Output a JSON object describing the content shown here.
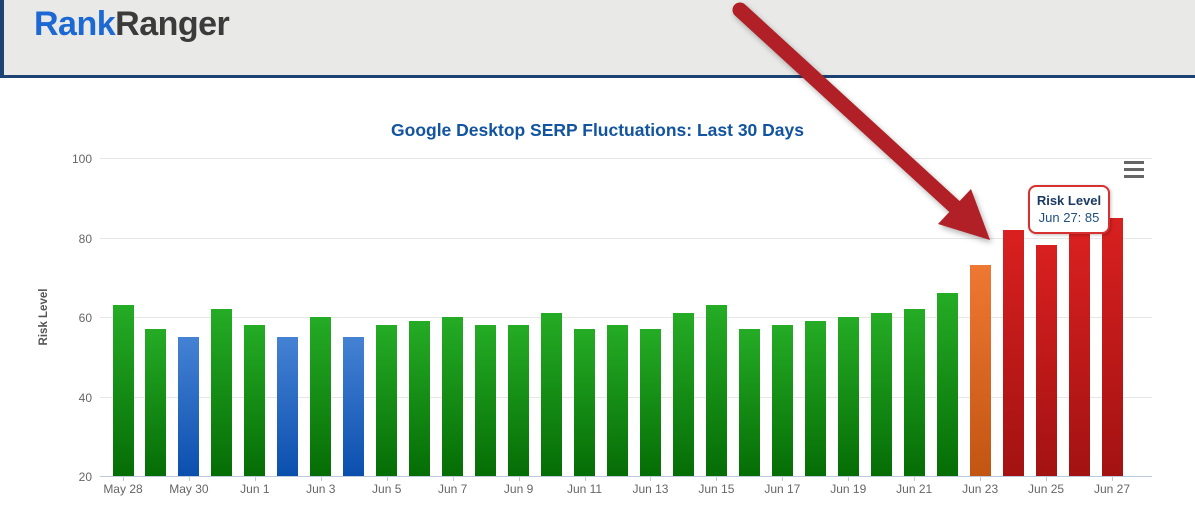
{
  "header": {
    "logo_part1": "Rank",
    "logo_part2": "Ranger"
  },
  "chart_data": {
    "type": "bar",
    "title": "Google Desktop SERP Fluctuations: Last 30 Days",
    "xlabel": "",
    "ylabel": "Risk Level",
    "ylim": [
      20,
      100
    ],
    "yticks": [
      20,
      40,
      60,
      80,
      100
    ],
    "grid": true,
    "legend": "none",
    "x_tick_label_every": 2,
    "categories": [
      "May 28",
      "May 29",
      "May 30",
      "May 31",
      "Jun 1",
      "Jun 2",
      "Jun 3",
      "Jun 4",
      "Jun 5",
      "Jun 6",
      "Jun 7",
      "Jun 8",
      "Jun 9",
      "Jun 10",
      "Jun 11",
      "Jun 12",
      "Jun 13",
      "Jun 14",
      "Jun 15",
      "Jun 16",
      "Jun 17",
      "Jun 18",
      "Jun 19",
      "Jun 20",
      "Jun 21",
      "Jun 22",
      "Jun 23",
      "Jun 24",
      "Jun 25",
      "Jun 26",
      "Jun 27"
    ],
    "values": [
      63,
      57,
      55,
      62,
      58,
      55,
      60,
      55,
      58,
      59,
      60,
      58,
      58,
      61,
      57,
      58,
      57,
      61,
      63,
      57,
      58,
      59,
      60,
      61,
      62,
      66,
      73,
      82,
      78,
      81,
      85
    ],
    "bar_colors": [
      "green",
      "green",
      "blue",
      "green",
      "green",
      "blue",
      "green",
      "blue",
      "green",
      "green",
      "green",
      "green",
      "green",
      "green",
      "green",
      "green",
      "green",
      "green",
      "green",
      "green",
      "green",
      "green",
      "green",
      "green",
      "green",
      "green",
      "orange",
      "red",
      "red",
      "red",
      "red"
    ],
    "palette": {
      "green": {
        "top": "#25ac25",
        "bottom": "#056d05"
      },
      "blue": {
        "top": "#4582d4",
        "bottom": "#0b4fae"
      },
      "orange": {
        "top": "#ee7833",
        "bottom": "#c25512"
      },
      "red": {
        "top": "#d92020",
        "bottom": "#a31212"
      }
    }
  },
  "tooltip": {
    "title": "Risk Level",
    "value": "Jun 27: 85"
  },
  "icons": {
    "menu_icon": "hamburger-menu"
  },
  "annotation": {
    "type": "arrow",
    "color": "#b02026"
  },
  "brand_colors": {
    "logo_blue": "#1c69d4",
    "logo_dark": "#3b3b3b",
    "header_border": "#1d4274",
    "title_blue": "#1254a0"
  }
}
